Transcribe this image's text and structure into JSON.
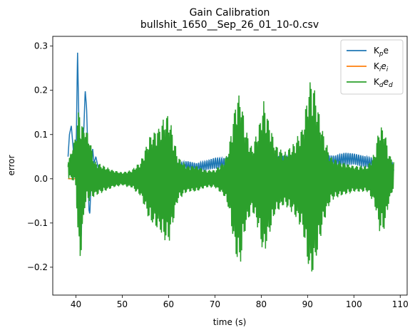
{
  "chart_data": {
    "type": "line",
    "title_line1": "Gain Calibration",
    "title_line2": "bullshit_1650__Sep_26_01_10-0.csv",
    "xlabel": "time (s)",
    "ylabel": "error",
    "xlim": [
      35,
      111.5
    ],
    "ylim": [
      -0.263,
      0.322
    ],
    "xticks": [
      40,
      50,
      60,
      70,
      80,
      90,
      100,
      110
    ],
    "yticks": [
      -0.2,
      -0.1,
      0.0,
      0.1,
      0.2,
      0.3
    ],
    "ytick_labels": [
      "−0.2",
      "−0.1",
      "0.0",
      "0.1",
      "0.2",
      "0.3"
    ],
    "grid": false,
    "legend_position": "top-right",
    "series": [
      {
        "name": "Kpe",
        "legend": {
          "base": "K",
          "sub": "p",
          "tail": "e"
        },
        "color": "#1f77b4",
        "x": [
          38.3,
          38.6,
          39.0,
          39.4,
          39.8,
          40.1,
          40.35,
          40.6,
          40.8,
          41.0,
          41.2,
          41.4,
          41.7,
          42.0,
          42.3,
          42.6,
          42.8,
          43.0,
          43.3,
          43.6,
          43.9,
          44.3,
          44.7,
          45.2,
          46.0,
          47.0,
          48.0,
          50.0,
          52.0,
          54.0,
          56.0,
          58.0,
          60.0,
          62.0,
          64.0,
          66.0,
          68.0,
          70.0,
          72.0,
          74.0,
          75.0,
          76.0,
          78.0,
          80.0,
          82.0,
          84.0,
          86.0,
          88.0,
          90.0,
          92.0,
          93.0,
          94.0,
          96.0,
          98.0,
          100.0,
          102.0,
          104.0,
          105.0,
          106.0,
          107.0,
          108.0,
          108.6
        ],
        "y": [
          0.05,
          0.1,
          0.12,
          0.07,
          0.0,
          0.1,
          0.29,
          0.15,
          -0.02,
          -0.15,
          -0.12,
          0.08,
          0.11,
          0.2,
          0.16,
          0.05,
          -0.07,
          -0.08,
          0.0,
          0.07,
          0.035,
          0.05,
          0.03,
          0.01,
          0.0,
          0.005,
          0.01,
          0.005,
          0.0,
          0.01,
          0.015,
          0.015,
          0.025,
          0.025,
          0.03,
          0.025,
          0.03,
          0.035,
          0.035,
          0.04,
          0.04,
          0.03,
          0.03,
          0.035,
          0.035,
          0.04,
          0.04,
          0.035,
          0.035,
          0.04,
          0.03,
          0.04,
          0.04,
          0.045,
          0.045,
          0.04,
          0.035,
          0.03,
          0.05,
          0.035,
          0.03,
          0.025
        ],
        "osc": [
          0,
          0,
          0,
          0,
          0,
          0,
          0,
          0,
          0,
          0,
          0,
          0,
          0,
          0,
          0,
          0,
          0,
          0,
          0,
          0,
          0,
          0,
          0,
          0,
          0,
          0,
          0,
          0,
          0,
          0,
          0,
          0,
          0.01,
          0.01,
          0.01,
          0.01,
          0.01,
          0.012,
          0.012,
          0.012,
          0.012,
          0.01,
          0.01,
          0.012,
          0.012,
          0.012,
          0.012,
          0.012,
          0.012,
          0.012,
          0.01,
          0.012,
          0.012,
          0.014,
          0.012,
          0.012,
          0.012,
          0.01,
          0.01,
          0.01,
          0.008,
          0.008
        ]
      },
      {
        "name": "Kiei",
        "legend": {
          "base": "K",
          "sub": "i",
          "tail": "e",
          "tail_sub": "i"
        },
        "color": "#ff7f0e",
        "x": [
          38.3,
          42.0,
          108.6
        ],
        "y": [
          0.0,
          0.0,
          0.0
        ]
      },
      {
        "name": "Kded",
        "legend": {
          "base": "K",
          "sub": "d",
          "tail": "e",
          "tail_sub": "d"
        },
        "color": "#2ca02c",
        "x": [
          38.3,
          39.0,
          40.0,
          40.5,
          41.0,
          41.5,
          42.0,
          43.0,
          44.0,
          46.0,
          48.0,
          50.0,
          52.0,
          54.0,
          55.0,
          56.0,
          58.0,
          59.0,
          60.0,
          61.0,
          62.0,
          64.0,
          66.0,
          68.0,
          70.0,
          72.0,
          73.0,
          74.5,
          75.5,
          76.5,
          78.0,
          79.5,
          80.5,
          81.5,
          83.0,
          85.0,
          87.0,
          89.0,
          90.5,
          91.5,
          92.5,
          93.5,
          95.0,
          97.0,
          100.0,
          103.0,
          104.5,
          105.5,
          106.5,
          107.5,
          108.6
        ],
        "amp": [
          0.02,
          0.03,
          0.06,
          0.16,
          0.17,
          0.12,
          0.09,
          0.07,
          0.04,
          0.03,
          0.02,
          0.015,
          0.02,
          0.04,
          0.07,
          0.1,
          0.12,
          0.14,
          0.15,
          0.1,
          0.05,
          0.03,
          0.03,
          0.02,
          0.02,
          0.04,
          0.07,
          0.18,
          0.2,
          0.12,
          0.07,
          0.12,
          0.18,
          0.14,
          0.08,
          0.06,
          0.08,
          0.12,
          0.23,
          0.21,
          0.15,
          0.1,
          0.05,
          0.04,
          0.03,
          0.03,
          0.06,
          0.12,
          0.12,
          0.06,
          0.03
        ],
        "offset": [
          0.02,
          0.03,
          0.04,
          0.0,
          -0.02,
          0.0,
          0.03,
          0.02,
          0.0,
          0.0,
          0.0,
          0.0,
          0.0,
          0.0,
          0.0,
          0.0,
          0.0,
          0.0,
          0.0,
          0.0,
          0.0,
          0.0,
          0.0,
          0.0,
          0.0,
          0.0,
          0.0,
          0.0,
          0.0,
          0.0,
          0.0,
          0.0,
          0.0,
          0.0,
          0.0,
          0.0,
          0.0,
          0.0,
          0.0,
          0.0,
          0.0,
          0.0,
          0.0,
          0.0,
          0.0,
          0.0,
          0.0,
          0.0,
          0.0,
          0.0,
          0.01
        ]
      }
    ]
  }
}
